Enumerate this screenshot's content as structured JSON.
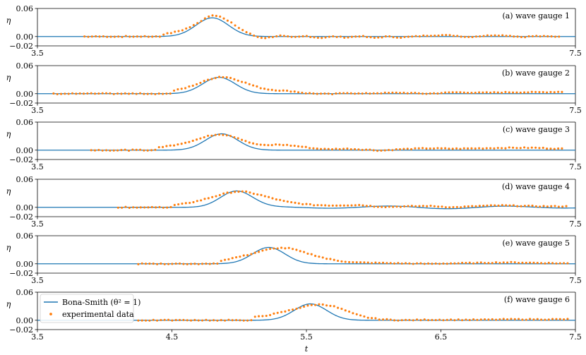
{
  "chart_data": {
    "type": "line",
    "xlabel": "t",
    "ylabel": "η",
    "xlim": [
      3.5,
      7.5
    ],
    "ylim": [
      -0.02,
      0.06
    ],
    "xticks_last_panel": [
      "3.5",
      "4.5",
      "5.5",
      "6.5",
      "7.5"
    ],
    "xticks_upper_panels": [
      "3.5",
      "7.5"
    ],
    "yticks": [
      "0.06",
      "0.00",
      "−0.02"
    ],
    "legend": {
      "placement": "upper-left of panel (f)",
      "entries": [
        "Bona-Smith (θ² = 1)",
        "experimental data"
      ]
    },
    "colors": {
      "model": "#1f77b4",
      "data": "#ff7f0e"
    },
    "panels": [
      {
        "title": "(a) wave gauge 1",
        "model": {
          "peak_t": 4.8,
          "amp": 0.04,
          "width": 0.17,
          "ripple": 0.0
        },
        "data": {
          "t_start": 3.85,
          "t_end": 7.4,
          "points": [
            [
              4.42,
              0.004
            ],
            [
              4.5,
              0.008
            ],
            [
              4.58,
              0.014
            ],
            [
              4.65,
              0.022
            ],
            [
              4.7,
              0.03
            ],
            [
              4.75,
              0.04
            ],
            [
              4.8,
              0.046
            ],
            [
              4.85,
              0.044
            ],
            [
              4.9,
              0.036
            ],
            [
              4.95,
              0.028
            ],
            [
              5.0,
              0.018
            ],
            [
              5.05,
              0.01
            ],
            [
              5.1,
              0.003
            ],
            [
              5.15,
              -0.002
            ],
            [
              5.2,
              -0.003
            ],
            [
              5.3,
              0.002
            ],
            [
              5.4,
              -0.002
            ],
            [
              5.5,
              0.001
            ],
            [
              5.6,
              -0.003
            ],
            [
              5.7,
              0.0
            ],
            [
              5.8,
              -0.002
            ],
            [
              5.9,
              0.001
            ],
            [
              6.0,
              -0.003
            ],
            [
              6.1,
              0.0
            ],
            [
              6.2,
              -0.002
            ],
            [
              6.3,
              0.0
            ],
            [
              6.4,
              0.002
            ],
            [
              6.5,
              0.003
            ],
            [
              6.6,
              0.002
            ],
            [
              6.7,
              -0.001
            ],
            [
              6.8,
              0.001
            ],
            [
              6.9,
              0.003
            ],
            [
              7.0,
              0.002
            ],
            [
              7.1,
              -0.001
            ],
            [
              7.2,
              0.001
            ],
            [
              7.3,
              0.0
            ]
          ]
        }
      },
      {
        "title": "(b) wave gauge 2",
        "model": {
          "peak_t": 4.85,
          "amp": 0.035,
          "width": 0.17,
          "ripple": 0.0
        },
        "data": {
          "t_start": 3.62,
          "t_end": 7.42,
          "points": [
            [
              4.5,
              0.006
            ],
            [
              4.6,
              0.012
            ],
            [
              4.7,
              0.022
            ],
            [
              4.78,
              0.031
            ],
            [
              4.85,
              0.036
            ],
            [
              4.92,
              0.035
            ],
            [
              5.0,
              0.028
            ],
            [
              5.08,
              0.02
            ],
            [
              5.15,
              0.013
            ],
            [
              5.22,
              0.009
            ],
            [
              5.3,
              0.007
            ],
            [
              5.4,
              0.005
            ],
            [
              5.5,
              0.001
            ],
            [
              5.6,
              0.0
            ],
            [
              5.7,
              -0.001
            ],
            [
              5.8,
              0.002
            ],
            [
              5.9,
              0.0
            ],
            [
              6.0,
              0.001
            ],
            [
              6.2,
              0.002
            ],
            [
              6.4,
              0.0
            ],
            [
              6.6,
              0.003
            ],
            [
              6.8,
              0.002
            ],
            [
              7.0,
              0.003
            ],
            [
              7.2,
              0.003
            ],
            [
              7.4,
              0.004
            ]
          ]
        }
      },
      {
        "title": "(c) wave gauge 3",
        "model": {
          "peak_t": 4.87,
          "amp": 0.035,
          "width": 0.17,
          "ripple": 0.0
        },
        "data": {
          "t_start": 3.9,
          "t_end": 7.4,
          "points": [
            [
              4.4,
              0.006
            ],
            [
              4.5,
              0.01
            ],
            [
              4.6,
              0.016
            ],
            [
              4.7,
              0.024
            ],
            [
              4.78,
              0.031
            ],
            [
              4.85,
              0.034
            ],
            [
              4.92,
              0.032
            ],
            [
              5.0,
              0.025
            ],
            [
              5.1,
              0.014
            ],
            [
              5.2,
              0.01
            ],
            [
              5.28,
              0.012
            ],
            [
              5.35,
              0.011
            ],
            [
              5.45,
              0.008
            ],
            [
              5.55,
              0.004
            ],
            [
              5.65,
              0.002
            ],
            [
              5.8,
              0.003
            ],
            [
              5.95,
              0.001
            ],
            [
              6.05,
              -0.001
            ],
            [
              6.2,
              0.002
            ],
            [
              6.4,
              0.004
            ],
            [
              6.6,
              0.003
            ],
            [
              6.8,
              0.004
            ],
            [
              7.0,
              0.005
            ],
            [
              7.2,
              0.005
            ],
            [
              7.38,
              0.003
            ]
          ]
        }
      },
      {
        "title": "(d) wave gauge 4",
        "model": {
          "peak_t": 4.98,
          "amp": 0.035,
          "width": 0.17,
          "ripple": 0.003
        },
        "data": {
          "t_start": 4.1,
          "t_end": 7.45,
          "points": [
            [
              4.5,
              0.004
            ],
            [
              4.6,
              0.008
            ],
            [
              4.7,
              0.014
            ],
            [
              4.8,
              0.022
            ],
            [
              4.9,
              0.03
            ],
            [
              4.98,
              0.034
            ],
            [
              5.05,
              0.033
            ],
            [
              5.15,
              0.027
            ],
            [
              5.25,
              0.019
            ],
            [
              5.35,
              0.012
            ],
            [
              5.45,
              0.008
            ],
            [
              5.55,
              0.005
            ],
            [
              5.7,
              0.004
            ],
            [
              5.9,
              0.005
            ],
            [
              6.0,
              0.002
            ],
            [
              6.1,
              0.001
            ],
            [
              6.25,
              0.002
            ],
            [
              6.4,
              0.003
            ],
            [
              6.6,
              0.0
            ],
            [
              6.8,
              0.003
            ],
            [
              6.95,
              0.004
            ],
            [
              7.1,
              0.003
            ],
            [
              7.3,
              0.002
            ],
            [
              7.45,
              0.002
            ]
          ]
        }
      },
      {
        "title": "(e) wave gauge 5",
        "model": {
          "peak_t": 5.22,
          "amp": 0.035,
          "width": 0.17,
          "ripple": 0.0
        },
        "data": {
          "t_start": 4.25,
          "t_end": 7.45,
          "points": [
            [
              4.85,
              0.006
            ],
            [
              4.95,
              0.012
            ],
            [
              5.05,
              0.018
            ],
            [
              5.15,
              0.026
            ],
            [
              5.22,
              0.031
            ],
            [
              5.3,
              0.034
            ],
            [
              5.38,
              0.033
            ],
            [
              5.45,
              0.027
            ],
            [
              5.55,
              0.019
            ],
            [
              5.65,
              0.011
            ],
            [
              5.75,
              0.006
            ],
            [
              5.85,
              0.003
            ],
            [
              6.0,
              0.002
            ],
            [
              6.2,
              0.001
            ],
            [
              6.4,
              0.0
            ],
            [
              6.6,
              0.001
            ],
            [
              6.8,
              0.002
            ],
            [
              7.0,
              0.003
            ],
            [
              7.2,
              0.002
            ],
            [
              7.4,
              0.001
            ]
          ]
        }
      },
      {
        "title": "(f) wave gauge 6",
        "model": {
          "peak_t": 5.53,
          "amp": 0.035,
          "width": 0.17,
          "ripple": 0.0
        },
        "data": {
          "t_start": 4.25,
          "t_end": 7.45,
          "points": [
            [
              5.1,
              0.006
            ],
            [
              5.2,
              0.01
            ],
            [
              5.3,
              0.016
            ],
            [
              5.4,
              0.023
            ],
            [
              5.48,
              0.029
            ],
            [
              5.55,
              0.033
            ],
            [
              5.62,
              0.034
            ],
            [
              5.7,
              0.03
            ],
            [
              5.78,
              0.022
            ],
            [
              5.85,
              0.014
            ],
            [
              5.95,
              0.006
            ],
            [
              6.05,
              0.002
            ],
            [
              6.2,
              0.0
            ],
            [
              6.4,
              0.001
            ],
            [
              6.6,
              0.001
            ],
            [
              6.8,
              0.001
            ],
            [
              7.0,
              0.002
            ],
            [
              7.2,
              0.002
            ],
            [
              7.4,
              0.002
            ]
          ]
        }
      }
    ]
  }
}
